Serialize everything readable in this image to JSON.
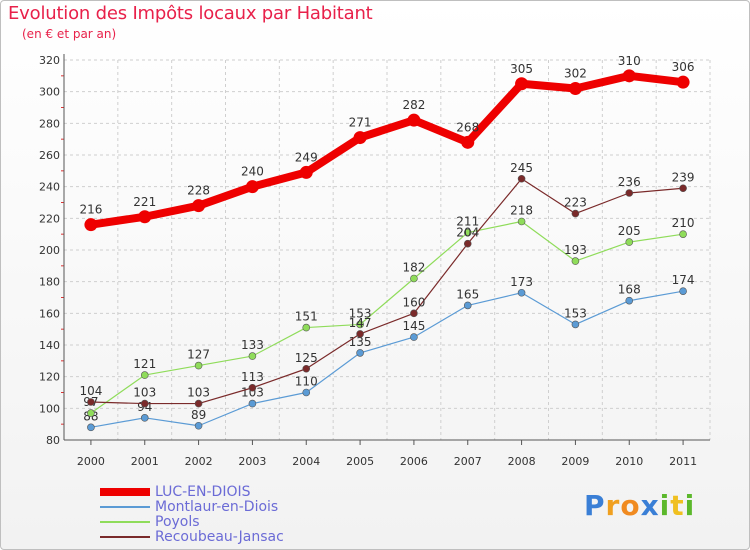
{
  "title": "Evolution des Impôts locaux par Habitant",
  "subtitle": "(en € et par an)",
  "logo": {
    "letters": [
      "P",
      "r",
      "o",
      "x",
      "i",
      "t",
      "i"
    ],
    "colors": [
      "#3a7fd6",
      "#f0a020",
      "#f08a20",
      "#3a7fd6",
      "#5cb82c",
      "#f0c020",
      "#5cb82c"
    ]
  },
  "chart_data": {
    "type": "line",
    "x": [
      "2000",
      "2001",
      "2002",
      "2003",
      "2004",
      "2005",
      "2006",
      "2007",
      "2008",
      "2009",
      "2010",
      "2011"
    ],
    "ylim": [
      80,
      320
    ],
    "yticks": [
      "80",
      "100",
      "120",
      "140",
      "160",
      "180",
      "200",
      "220",
      "240",
      "260",
      "280",
      "300",
      "320"
    ],
    "grid": true,
    "legend_position": "bottom-left",
    "series": [
      {
        "name": "LUC-EN-DIOIS",
        "color": "#ee0000",
        "width": 8,
        "values": [
          216,
          221,
          228,
          240,
          249,
          271,
          282,
          268,
          305,
          302,
          310,
          306
        ],
        "labels": [
          "216",
          "221",
          "228",
          "240",
          "249",
          "271",
          "282",
          "268",
          "305",
          "302",
          "310",
          "306"
        ]
      },
      {
        "name": "Montlaur-en-Diois",
        "color": "#5b9bd5",
        "width": 1.2,
        "values": [
          88,
          94,
          89,
          103,
          110,
          135,
          145,
          165,
          173,
          153,
          168,
          174
        ],
        "labels": [
          "88",
          "94",
          "89",
          "103",
          "110",
          "135",
          "145",
          "165",
          "173",
          "153",
          "168",
          "174"
        ]
      },
      {
        "name": "Poyols",
        "color": "#8fdc5a",
        "width": 1.2,
        "values": [
          97,
          121,
          127,
          133,
          151,
          153,
          182,
          211,
          218,
          193,
          205,
          210
        ],
        "labels": [
          "97",
          "121",
          "127",
          "133",
          "151",
          "153",
          "182",
          "211",
          "218",
          "193",
          "205",
          "210"
        ]
      },
      {
        "name": "Recoubeau-Jansac",
        "color": "#7a2a2a",
        "width": 1.2,
        "values": [
          104,
          103,
          103,
          113,
          125,
          147,
          160,
          204,
          245,
          223,
          236,
          239
        ],
        "labels": [
          "104",
          "103",
          "103",
          "113",
          "125",
          "147",
          "160",
          "204",
          "245",
          "223",
          "236",
          "239"
        ]
      }
    ]
  }
}
